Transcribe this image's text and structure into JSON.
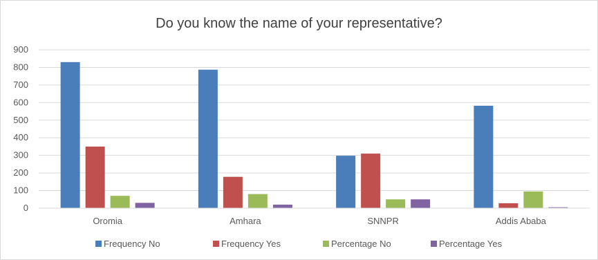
{
  "chart_data": {
    "type": "bar",
    "title": "Do you know the name of your representative?",
    "xlabel": "",
    "ylabel": "",
    "categories": [
      "Oromia",
      "Amhara",
      "SNNPR",
      "Addis Ababa"
    ],
    "series": [
      {
        "name": "Frequency No",
        "values": [
          830,
          787,
          298,
          582
        ],
        "color": "#4a7ebb"
      },
      {
        "name": "Frequency Yes",
        "values": [
          350,
          178,
          310,
          28
        ],
        "color": "#c0504d"
      },
      {
        "name": "Percentage No",
        "values": [
          70,
          80,
          50,
          95
        ],
        "color": "#9bbb59"
      },
      {
        "name": "Percentage Yes",
        "values": [
          30,
          20,
          50,
          5
        ],
        "color": "#8064a2"
      }
    ],
    "ylim": [
      0,
      900
    ],
    "yticks": [
      0,
      100,
      200,
      300,
      400,
      500,
      600,
      700,
      800,
      900
    ],
    "grid": true,
    "legend_position": "bottom"
  }
}
